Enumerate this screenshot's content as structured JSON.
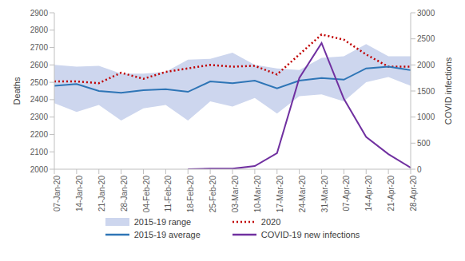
{
  "chart_data": {
    "type": "line",
    "categories": [
      "07-Jan-20",
      "14-Jan-20",
      "21-Jan-20",
      "28-Jan-20",
      "04-Feb-20",
      "11-Feb-20",
      "18-Feb-20",
      "25-Feb-20",
      "03-Mar-20",
      "10-Mar-20",
      "17-Mar-20",
      "24-Mar-20",
      "31-Mar-20",
      "07-Apr-20",
      "14-Apr-20",
      "21-Apr-20",
      "28-Apr-20"
    ],
    "y_label": "Deaths",
    "y2_label": "COVID infections",
    "ylim": [
      2000,
      2900
    ],
    "yticks": [
      2000,
      2100,
      2200,
      2300,
      2400,
      2500,
      2600,
      2700,
      2800,
      2900
    ],
    "y2lim": [
      0,
      3000
    ],
    "y2ticks": [
      0,
      500,
      1000,
      1500,
      2000,
      2500,
      3000
    ],
    "grid": false,
    "legend": "bottom",
    "series": [
      {
        "name": "2015-19 range",
        "type": "area",
        "color": "#cdd6ee",
        "values": [
          [
            2380,
            2600
          ],
          [
            2330,
            2590
          ],
          [
            2370,
            2595
          ],
          [
            2280,
            2550
          ],
          [
            2350,
            2550
          ],
          [
            2370,
            2560
          ],
          [
            2280,
            2630
          ],
          [
            2390,
            2635
          ],
          [
            2360,
            2670
          ],
          [
            2410,
            2600
          ],
          [
            2320,
            2580
          ],
          [
            2420,
            2570
          ],
          [
            2430,
            2640
          ],
          [
            2390,
            2650
          ],
          [
            2500,
            2720
          ],
          [
            2530,
            2650
          ],
          [
            2480,
            2650
          ]
        ]
      },
      {
        "name": "2020",
        "type": "line",
        "color": "#c00000",
        "line_style": "dotted",
        "values": [
          2505,
          2505,
          2495,
          2555,
          2520,
          2560,
          2580,
          2600,
          2590,
          2595,
          2545,
          2660,
          2775,
          2745,
          2660,
          2590,
          2590
        ]
      },
      {
        "name": "2015-19 average",
        "type": "line",
        "color": "#2e75b6",
        "line_style": "solid",
        "values": [
          2480,
          2490,
          2450,
          2440,
          2455,
          2460,
          2445,
          2505,
          2495,
          2510,
          2465,
          2510,
          2525,
          2515,
          2580,
          2590,
          2570
        ]
      },
      {
        "name": "COVID-19 new infections",
        "type": "line",
        "color": "#7030a0",
        "line_style": "solid",
        "axis": "y2",
        "values": [
          null,
          null,
          null,
          null,
          null,
          null,
          0,
          10,
          10,
          60,
          310,
          1750,
          2420,
          1350,
          620,
          290,
          30
        ]
      }
    ]
  }
}
